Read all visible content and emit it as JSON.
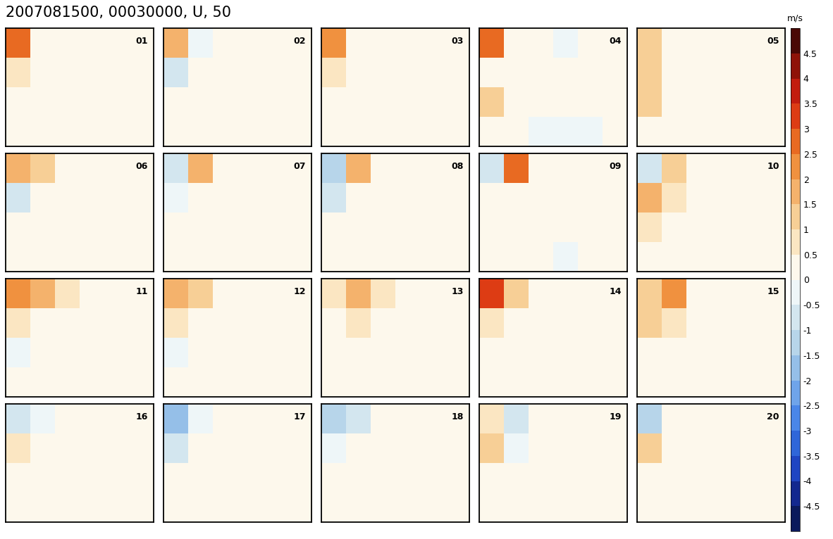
{
  "chart_data": {
    "type": "heatmap",
    "title": "2007081500, 00030000, U, 50",
    "colorbar_label": "m/s",
    "colorbar_range": [
      -5,
      5
    ],
    "colorbar_ticks": [
      -4.5,
      -4,
      -3.5,
      -3,
      -2.5,
      -2,
      -1.5,
      -1,
      -0.5,
      0,
      0.5,
      1,
      1.5,
      2,
      2.5,
      3,
      3.5,
      4,
      4.5
    ],
    "tick_labels": false,
    "panels": [
      {
        "label": "01",
        "cells": [
          [
            2.5,
            0.3,
            0.2,
            0,
            0,
            0
          ],
          [
            0.6,
            0.2,
            0.1,
            0,
            0,
            0
          ],
          [
            0.4,
            0.2,
            0.1,
            0,
            0,
            0
          ],
          [
            0.3,
            0.2,
            0.1,
            0,
            0,
            0
          ]
        ]
      },
      {
        "label": "02",
        "cells": [
          [
            1.5,
            -0.3,
            0.1,
            0,
            0,
            0
          ],
          [
            -0.8,
            0.2,
            0.1,
            0,
            0,
            0
          ],
          [
            0.2,
            0.1,
            0,
            0,
            0,
            0
          ],
          [
            0.2,
            0.1,
            0.1,
            0,
            0,
            0
          ]
        ]
      },
      {
        "label": "03",
        "cells": [
          [
            2.3,
            0.4,
            0.1,
            0,
            0,
            0
          ],
          [
            0.8,
            0.2,
            0.1,
            0,
            0,
            0
          ],
          [
            0.3,
            0.1,
            0,
            0,
            0,
            0
          ],
          [
            0.2,
            0.1,
            0.1,
            0,
            0,
            0
          ]
        ]
      },
      {
        "label": "04",
        "cells": [
          [
            2.8,
            0.3,
            0.1,
            -0.2,
            0,
            0
          ],
          [
            0.4,
            0.1,
            0,
            0,
            0,
            0
          ],
          [
            1.2,
            0.2,
            0,
            0,
            0,
            0
          ],
          [
            0.3,
            0.1,
            -0.2,
            -0.2,
            -0.1,
            0
          ]
        ]
      },
      {
        "label": "05",
        "cells": [
          [
            1.0,
            0.3,
            0.1,
            0,
            0,
            0
          ],
          [
            1.2,
            0.2,
            0,
            0,
            0,
            0
          ],
          [
            1.0,
            0.2,
            0.1,
            0,
            0,
            0
          ],
          [
            0.3,
            0.1,
            0,
            0,
            0,
            0
          ]
        ]
      },
      {
        "label": "06",
        "cells": [
          [
            1.5,
            1.2,
            0.2,
            0.1,
            0,
            0
          ],
          [
            -0.8,
            0.3,
            0.1,
            0,
            0,
            0
          ],
          [
            0.3,
            0.2,
            0.1,
            0,
            0,
            0
          ],
          [
            0.2,
            0.2,
            0.1,
            0,
            0,
            0
          ]
        ]
      },
      {
        "label": "07",
        "cells": [
          [
            -1.0,
            1.5,
            0.2,
            0,
            0,
            0
          ],
          [
            -0.5,
            0.2,
            0.1,
            0,
            0,
            0
          ],
          [
            0.2,
            0.1,
            0,
            0,
            0,
            0
          ],
          [
            0.2,
            0.1,
            0,
            0,
            0,
            0
          ]
        ]
      },
      {
        "label": "08",
        "cells": [
          [
            -1.2,
            1.5,
            0.3,
            0.1,
            0,
            0
          ],
          [
            -0.8,
            0.2,
            0.1,
            0,
            0,
            0
          ],
          [
            0.3,
            0.1,
            0.1,
            0,
            0,
            0
          ],
          [
            0.2,
            0.1,
            0,
            0,
            0,
            0
          ]
        ]
      },
      {
        "label": "09",
        "cells": [
          [
            -0.6,
            2.5,
            0.1,
            0,
            0,
            0
          ],
          [
            0.4,
            0.3,
            0.1,
            0,
            0,
            0
          ],
          [
            0.3,
            0.2,
            0.1,
            0,
            0,
            0
          ],
          [
            0.2,
            0.1,
            0,
            -0.2,
            0,
            0
          ]
        ]
      },
      {
        "label": "10",
        "cells": [
          [
            -0.8,
            1.2,
            0.2,
            0,
            0,
            0
          ],
          [
            1.8,
            0.8,
            0.2,
            0,
            0,
            0
          ],
          [
            0.6,
            0.3,
            0.1,
            0,
            0,
            0
          ],
          [
            0.2,
            0.1,
            0.1,
            0,
            0,
            0
          ]
        ]
      },
      {
        "label": "11",
        "cells": [
          [
            2.0,
            1.5,
            0.5,
            0.2,
            0,
            0
          ],
          [
            0.5,
            0.3,
            0.1,
            0,
            0,
            0
          ],
          [
            -0.5,
            0.1,
            0,
            0,
            0,
            0
          ],
          [
            0.2,
            0.2,
            0.2,
            0.1,
            0,
            0
          ]
        ]
      },
      {
        "label": "12",
        "cells": [
          [
            1.8,
            1.0,
            0.3,
            0.1,
            0,
            0
          ],
          [
            0.8,
            0.3,
            0.1,
            0,
            0,
            0
          ],
          [
            -0.3,
            0.1,
            0,
            0,
            0,
            0
          ],
          [
            0.2,
            0.2,
            0.1,
            0,
            0,
            0
          ]
        ]
      },
      {
        "label": "13",
        "cells": [
          [
            0.8,
            1.8,
            0.5,
            0.1,
            0,
            0
          ],
          [
            0.3,
            0.8,
            0.1,
            0,
            0,
            0
          ],
          [
            0.2,
            0.1,
            0,
            0,
            0,
            0
          ],
          [
            0.2,
            0.2,
            0.1,
            0,
            0,
            0
          ]
        ]
      },
      {
        "label": "14",
        "cells": [
          [
            3.0,
            1.2,
            0.3,
            0.1,
            0,
            0
          ],
          [
            0.6,
            0.3,
            0.1,
            0,
            0,
            0
          ],
          [
            0.3,
            0.2,
            0.1,
            0,
            0,
            0
          ],
          [
            0.3,
            0.2,
            0.1,
            0,
            0,
            0
          ]
        ]
      },
      {
        "label": "15",
        "cells": [
          [
            1.0,
            2.0,
            0.4,
            0.1,
            0,
            0
          ],
          [
            1.2,
            0.8,
            0.2,
            0,
            0,
            0
          ],
          [
            0.3,
            0.2,
            0.1,
            0,
            0,
            0
          ],
          [
            0.2,
            0.1,
            0.1,
            0,
            0,
            0
          ]
        ]
      },
      {
        "label": "16",
        "cells": [
          [
            -1.0,
            -0.3,
            0,
            0,
            0,
            0
          ],
          [
            0.6,
            0.1,
            0,
            0,
            0,
            0
          ],
          [
            0.2,
            0.1,
            0,
            0,
            0,
            0
          ],
          [
            0.1,
            0.1,
            0,
            0,
            0,
            0
          ]
        ]
      },
      {
        "label": "17",
        "cells": [
          [
            -2.0,
            -0.5,
            0,
            0,
            0,
            0
          ],
          [
            -0.6,
            0.1,
            0,
            0,
            0,
            0
          ],
          [
            0.1,
            0,
            0,
            0,
            0,
            0
          ],
          [
            0.1,
            0,
            0,
            0,
            0,
            0
          ]
        ]
      },
      {
        "label": "18",
        "cells": [
          [
            -1.5,
            -0.6,
            0,
            0,
            0,
            0
          ],
          [
            -0.5,
            0.1,
            0,
            0,
            0,
            0
          ],
          [
            0.1,
            0,
            0,
            0,
            0,
            0
          ],
          [
            0.1,
            0,
            0,
            0,
            0,
            0
          ]
        ]
      },
      {
        "label": "19",
        "cells": [
          [
            0.6,
            -0.8,
            0.1,
            0,
            0,
            0
          ],
          [
            1.0,
            -0.2,
            0,
            0,
            0,
            0
          ],
          [
            0.4,
            0.1,
            0,
            0,
            0,
            0
          ],
          [
            0.2,
            0.1,
            0,
            0,
            0,
            0
          ]
        ]
      },
      {
        "label": "20",
        "cells": [
          [
            -1.2,
            0.2,
            0,
            0,
            0,
            0
          ],
          [
            1.2,
            0.2,
            0,
            0,
            0,
            0
          ],
          [
            0.4,
            0.2,
            0,
            0,
            0,
            0
          ],
          [
            0.2,
            0.1,
            0,
            0,
            0,
            0
          ]
        ]
      }
    ]
  }
}
